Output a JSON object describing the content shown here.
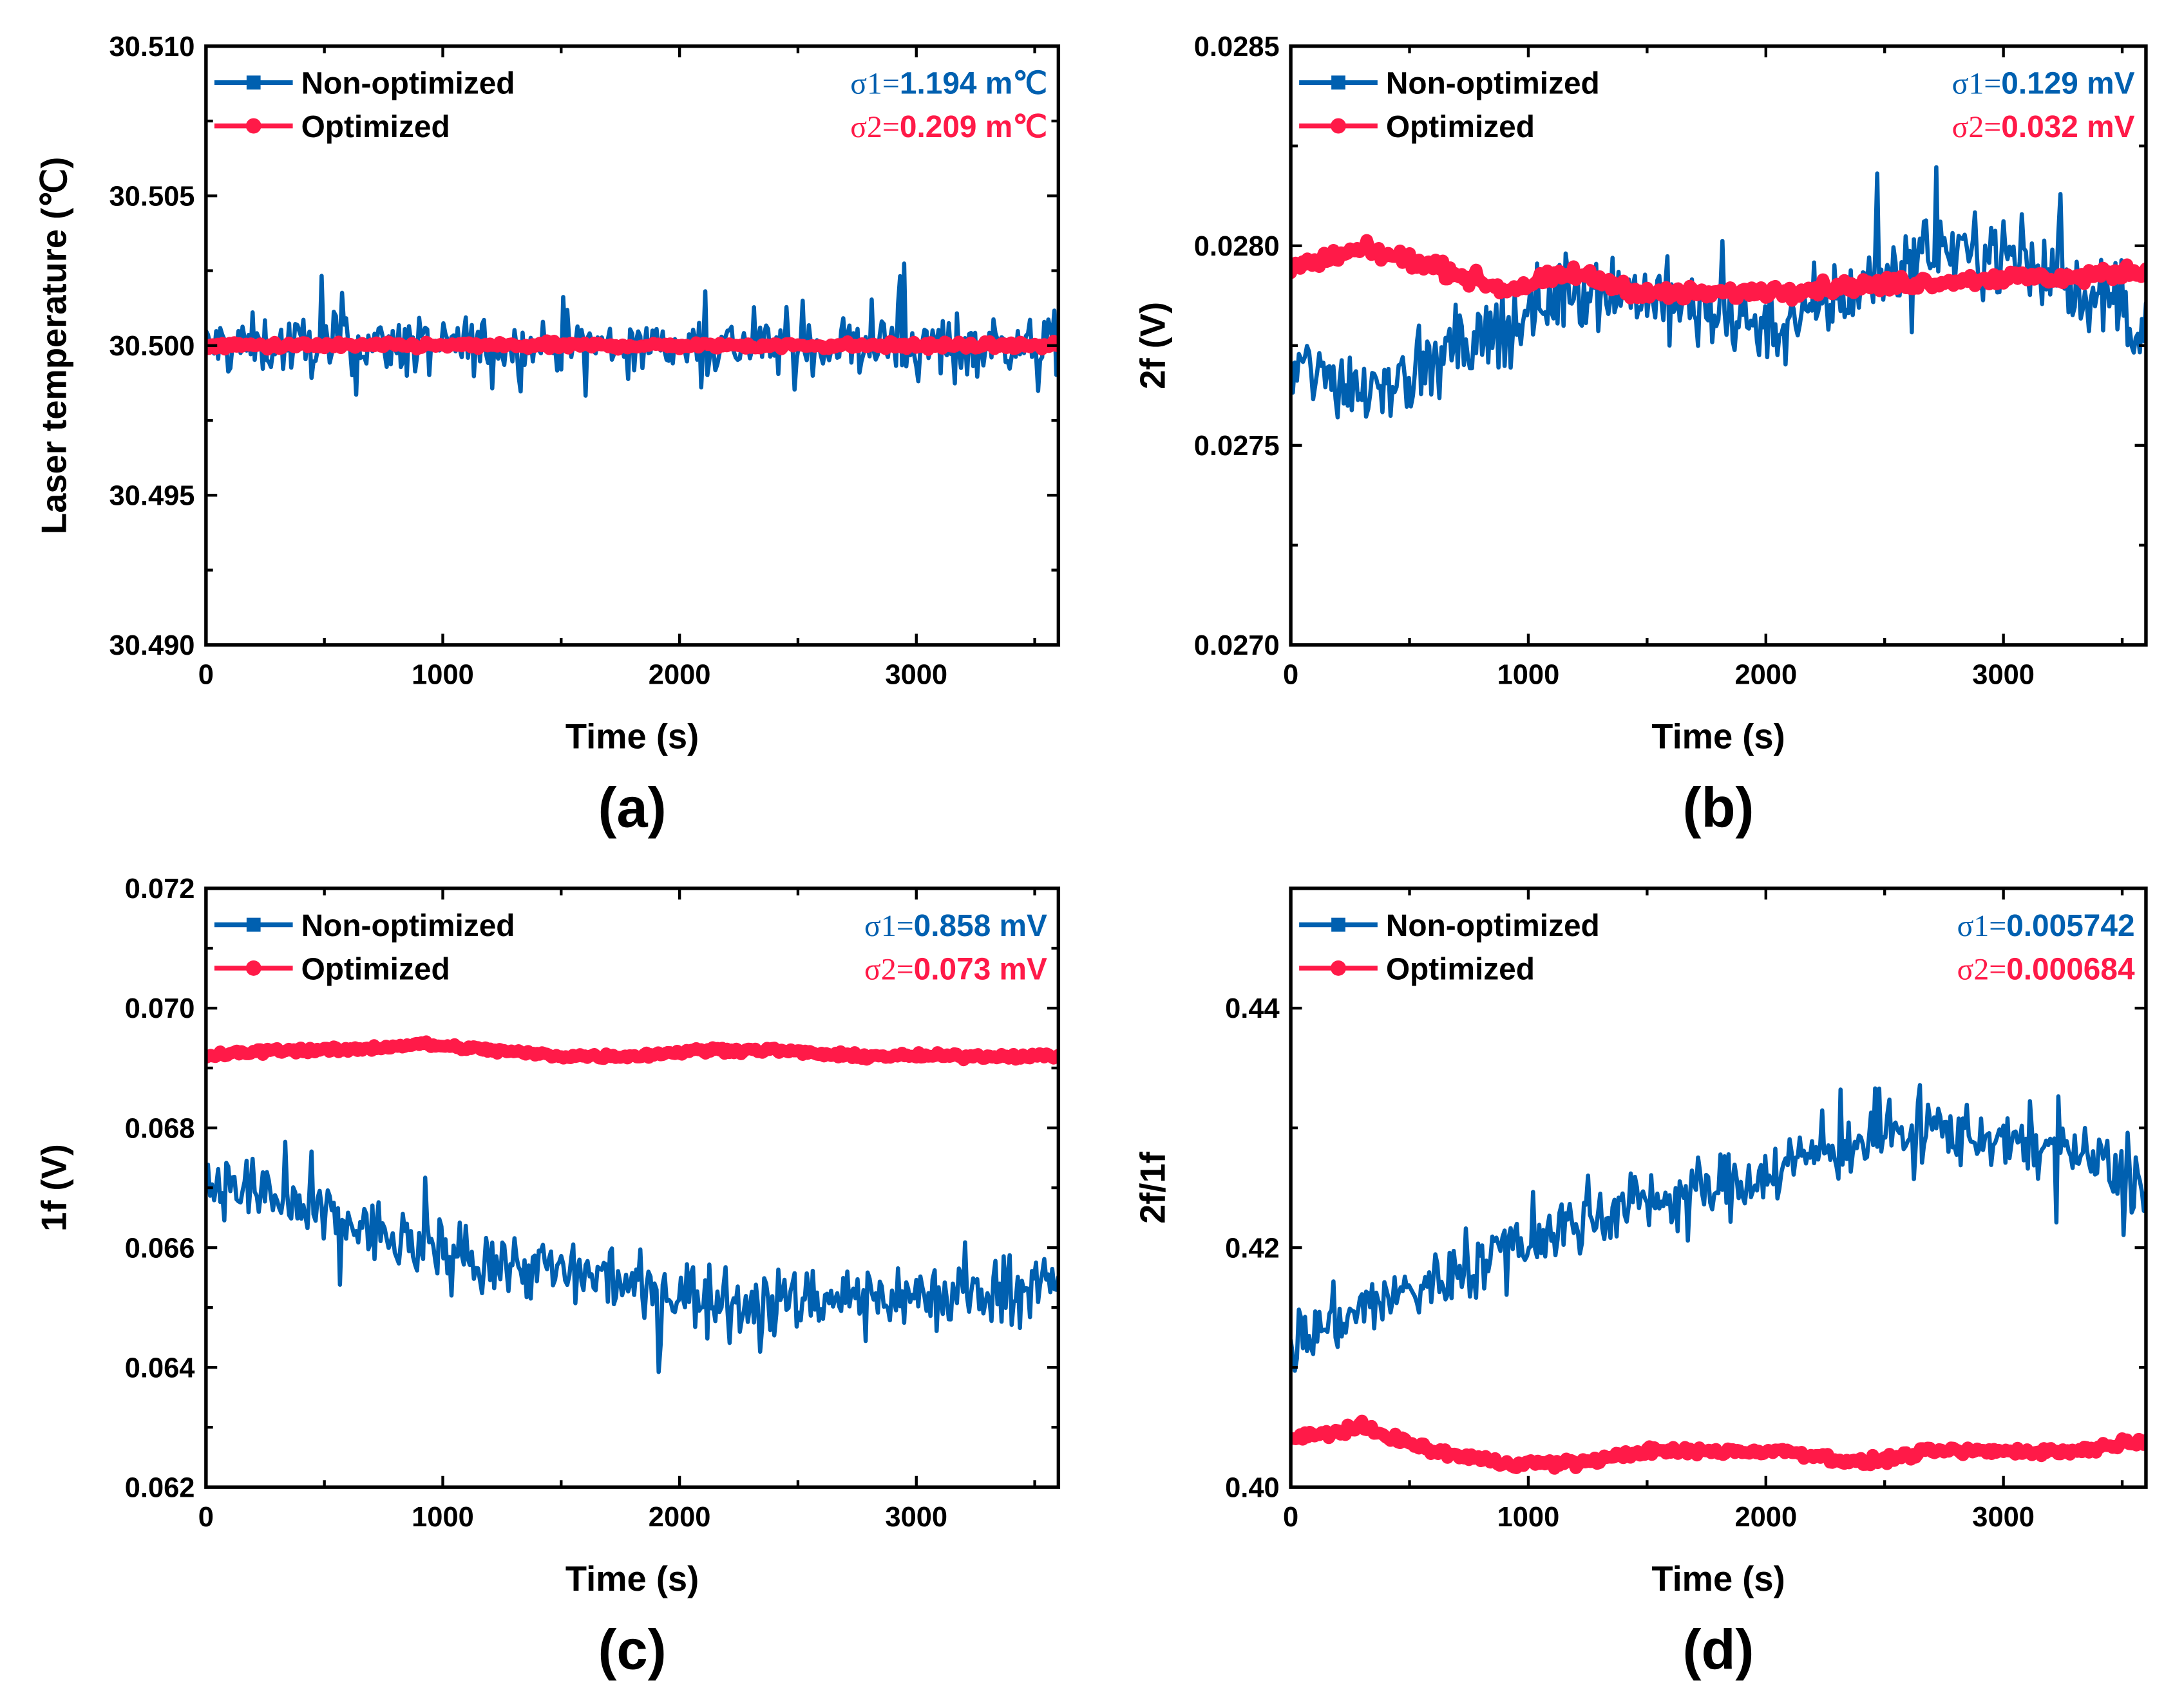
{
  "colors": {
    "non_optimized": "#0060B0",
    "optimized": "#FF1A48"
  },
  "chart_data": [
    {
      "type": "line",
      "panel_label": "(a)",
      "xlabel": "Time (s)",
      "ylabel": "Laser temperature (℃)",
      "xlim": [
        0,
        3600
      ],
      "ylim": [
        30.49,
        30.51
      ],
      "xticks": [
        "0",
        "1000",
        "2000",
        "3000"
      ],
      "yticks": [
        "30.490",
        "30.495",
        "30.500",
        "30.505",
        "30.510"
      ],
      "legend": [
        "Non-optimized",
        "Optimized"
      ],
      "legend_position": "top-left",
      "annotations": [
        {
          "prefix": "σ1=",
          "value": "1.194 m℃"
        },
        {
          "prefix": "σ2=",
          "value": "0.209 m℃"
        }
      ],
      "x": [
        0,
        300,
        600,
        900,
        1200,
        1500,
        1800,
        2100,
        2400,
        2700,
        3000,
        3300,
        3600
      ],
      "series": [
        {
          "name": "Non-optimized",
          "trend": [
            30.5,
            30.5,
            30.5,
            30.5,
            30.5,
            30.5,
            30.5,
            30.5,
            30.5,
            30.5,
            30.5,
            30.5,
            30.5
          ],
          "noise": 0.0016
        },
        {
          "name": "Optimized",
          "trend": [
            30.5,
            30.5,
            30.5,
            30.5,
            30.5,
            30.5,
            30.5,
            30.5,
            30.5,
            30.5,
            30.5,
            30.5,
            30.5
          ],
          "noise": 0.0002
        }
      ]
    },
    {
      "type": "line",
      "panel_label": "(b)",
      "xlabel": "Time (s)",
      "ylabel": "2f (V)",
      "xlim": [
        0,
        3600
      ],
      "ylim": [
        0.027,
        0.0285
      ],
      "xticks": [
        "0",
        "1000",
        "2000",
        "3000"
      ],
      "yticks": [
        "0.0270",
        "0.0275",
        "0.0280",
        "0.0285"
      ],
      "legend": [
        "Non-optimized",
        "Optimized"
      ],
      "legend_position": "top-left",
      "annotations": [
        {
          "prefix": "σ1=",
          "value": "0.129 mV"
        },
        {
          "prefix": "σ2=",
          "value": "0.032 mV"
        }
      ],
      "x": [
        0,
        300,
        600,
        900,
        1200,
        1500,
        1800,
        2100,
        2400,
        2700,
        3000,
        3300,
        3600
      ],
      "series": [
        {
          "name": "Non-optimized",
          "trend": [
            0.0277,
            0.02765,
            0.0277,
            0.0278,
            0.0279,
            0.02788,
            0.02782,
            0.0278,
            0.0279,
            0.028,
            0.02798,
            0.0279,
            0.0278
          ],
          "noise": 0.00016
        },
        {
          "name": "Optimized",
          "trend": [
            0.02794,
            0.02799,
            0.02795,
            0.02789,
            0.02793,
            0.02788,
            0.02788,
            0.02789,
            0.0279,
            0.02791,
            0.02792,
            0.02792,
            0.02794
          ],
          "noise": 3e-05
        }
      ]
    },
    {
      "type": "line",
      "panel_label": "(c)",
      "xlabel": "Time (s)",
      "ylabel": "1f (V)",
      "xlim": [
        0,
        3600
      ],
      "ylim": [
        0.062,
        0.072
      ],
      "xticks": [
        "0",
        "1000",
        "2000",
        "3000"
      ],
      "yticks": [
        "0.062",
        "0.064",
        "0.066",
        "0.068",
        "0.070",
        "0.072"
      ],
      "legend": [
        "Non-optimized",
        "Optimized"
      ],
      "legend_position": "top-left",
      "annotations": [
        {
          "prefix": "σ1=",
          "value": "0.858 mV"
        },
        {
          "prefix": "σ2=",
          "value": "0.073 mV"
        }
      ],
      "x": [
        0,
        300,
        600,
        900,
        1200,
        1500,
        1800,
        2100,
        2400,
        2700,
        3000,
        3300,
        3600
      ],
      "series": [
        {
          "name": "Non-optimized",
          "trend": [
            0.0672,
            0.0668,
            0.0664,
            0.066,
            0.0658,
            0.0656,
            0.0654,
            0.0652,
            0.0651,
            0.0652,
            0.0652,
            0.0653,
            0.0654
          ],
          "noise": 0.0009
        },
        {
          "name": "Optimized",
          "trend": [
            0.0692,
            0.0693,
            0.0693,
            0.0694,
            0.0693,
            0.0692,
            0.0692,
            0.0693,
            0.0693,
            0.0692,
            0.0692,
            0.0692,
            0.0692
          ],
          "noise": 8e-05
        }
      ]
    },
    {
      "type": "line",
      "panel_label": "(d)",
      "xlabel": "Time (s)",
      "ylabel": "2f/1f",
      "xlim": [
        0,
        3600
      ],
      "ylim": [
        0.4,
        0.45
      ],
      "xticks": [
        "0",
        "1000",
        "2000",
        "3000"
      ],
      "yticks": [
        "0.40",
        "0.42",
        "0.44"
      ],
      "legend": [
        "Non-optimized",
        "Optimized"
      ],
      "legend_position": "top-left",
      "annotations": [
        {
          "prefix": "σ1=",
          "value": "0.005742"
        },
        {
          "prefix": "σ2=",
          "value": "0.000684"
        }
      ],
      "x": [
        0,
        300,
        600,
        900,
        1200,
        1500,
        1800,
        2100,
        2400,
        2700,
        3000,
        3300,
        3600
      ],
      "series": [
        {
          "name": "Non-optimized",
          "trend": [
            0.412,
            0.415,
            0.417,
            0.42,
            0.422,
            0.424,
            0.425,
            0.427,
            0.429,
            0.43,
            0.429,
            0.428,
            0.425
          ],
          "noise": 0.0045
        },
        {
          "name": "Optimized",
          "trend": [
            0.404,
            0.405,
            0.403,
            0.402,
            0.402,
            0.403,
            0.403,
            0.403,
            0.402,
            0.403,
            0.403,
            0.403,
            0.404
          ],
          "noise": 0.0006
        }
      ]
    }
  ]
}
